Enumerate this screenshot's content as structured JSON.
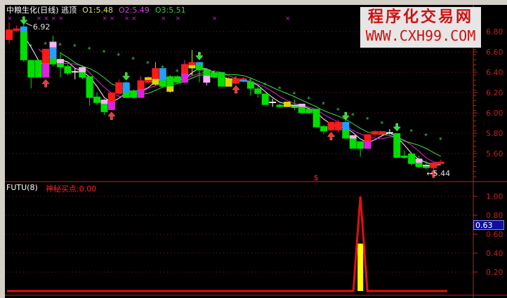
{
  "header": {
    "title": "中粮生化(日线) 逃顶",
    "o1": "O1:5.48",
    "o2": "O2:5.49",
    "o3": "O3:5.51"
  },
  "watermark": {
    "line1": "程序化交易网",
    "line2": "WWW.CXH99.COM"
  },
  "subpanel": {
    "name": "FUTU(8)",
    "series_label": "神秘买点:0.00",
    "cursor_value": "0.63"
  },
  "colors": {
    "red": "#ff1a1a",
    "green": "#00e000",
    "blue": "#22a0ff",
    "magenta": "#e020e0",
    "pink": "#ffb0ff",
    "yellow": "#d8d800",
    "white": "#ffffff",
    "axis": "#c02020",
    "stars": "#40d040",
    "purple_marks": "#c020c0"
  },
  "chart_data": [
    {
      "type": "candlestick",
      "ylim": [
        5.38,
        6.94
      ],
      "yticks": [
        "6.80",
        "6.60",
        "6.40",
        "6.20",
        "6.00",
        "5.80",
        "5.60"
      ],
      "high_label": "6.92",
      "low_label": "5.44",
      "candles": [
        {
          "t": 6.82,
          "b": 6.72,
          "h": 6.89,
          "l": 6.68,
          "c": [
            "red"
          ]
        },
        {
          "t": 6.83,
          "b": 6.81,
          "h": 6.86,
          "l": 6.8,
          "c": [
            "red"
          ]
        },
        {
          "t": 6.85,
          "b": 6.52,
          "h": 6.92,
          "l": 6.5,
          "c": [
            "blue",
            "green",
            "green",
            "green",
            "green",
            "green"
          ]
        },
        {
          "t": 6.52,
          "b": 6.35,
          "h": 6.52,
          "l": 6.24,
          "c": [
            "green"
          ]
        },
        {
          "t": 6.52,
          "b": 6.35,
          "h": 6.52,
          "l": 6.35,
          "c": [
            "green"
          ]
        },
        {
          "t": 6.63,
          "b": 6.35,
          "h": 6.63,
          "l": 6.35,
          "c": [
            "red",
            "magenta"
          ]
        },
        {
          "t": 6.7,
          "b": 6.48,
          "h": 6.76,
          "l": 6.46,
          "c": [
            "pink",
            "blue",
            "blue",
            "green"
          ]
        },
        {
          "t": 6.53,
          "b": 6.45,
          "h": 6.6,
          "l": 6.35,
          "c": [
            "pink",
            "green"
          ]
        },
        {
          "t": 6.46,
          "b": 6.39,
          "h": 6.48,
          "l": 6.37,
          "c": [
            "green"
          ]
        },
        {
          "t": 6.41,
          "b": 6.4,
          "h": 6.44,
          "l": 6.33,
          "c": [
            "white"
          ]
        },
        {
          "t": 6.45,
          "b": 6.35,
          "h": 6.47,
          "l": 6.33,
          "c": [
            "pink",
            "green"
          ]
        },
        {
          "t": 6.36,
          "b": 6.15,
          "h": 6.36,
          "l": 6.07,
          "c": [
            "green"
          ]
        },
        {
          "t": 6.16,
          "b": 6.1,
          "h": 6.2,
          "l": 6.08,
          "c": [
            "green"
          ]
        },
        {
          "t": 6.13,
          "b": 6.01,
          "h": 6.14,
          "l": 5.98,
          "c": [
            "pink",
            "green",
            "green"
          ]
        },
        {
          "t": 6.2,
          "b": 6.03,
          "h": 6.2,
          "l": 6.03,
          "c": [
            "red",
            "magenta"
          ]
        },
        {
          "t": 6.3,
          "b": 6.19,
          "h": 6.33,
          "l": 6.17,
          "c": [
            "red"
          ]
        },
        {
          "t": 6.3,
          "b": 6.15,
          "h": 6.31,
          "l": 6.15,
          "c": [
            "blue",
            "blue",
            "green"
          ]
        },
        {
          "t": 6.22,
          "b": 6.15,
          "h": 6.23,
          "l": 6.14,
          "c": [
            "green"
          ]
        },
        {
          "t": 6.32,
          "b": 6.15,
          "h": 6.36,
          "l": 6.15,
          "c": [
            "red",
            "magenta"
          ]
        },
        {
          "t": 6.35,
          "b": 6.3,
          "h": 6.36,
          "l": 6.29,
          "c": [
            "yellow",
            "red"
          ]
        },
        {
          "t": 6.44,
          "b": 6.28,
          "h": 6.5,
          "l": 6.27,
          "c": [
            "red",
            "red",
            "yellow"
          ]
        },
        {
          "t": 6.44,
          "b": 6.26,
          "h": 6.44,
          "l": 6.26,
          "c": [
            "blue",
            "blue",
            "green"
          ]
        },
        {
          "t": 6.36,
          "b": 6.21,
          "h": 6.37,
          "l": 6.2,
          "c": [
            "green",
            "green",
            "yellow"
          ]
        },
        {
          "t": 6.36,
          "b": 6.3,
          "h": 6.37,
          "l": 6.29,
          "c": [
            "green"
          ]
        },
        {
          "t": 6.48,
          "b": 6.3,
          "h": 6.52,
          "l": 6.29,
          "c": [
            "red",
            "magenta"
          ]
        },
        {
          "t": 6.5,
          "b": 6.44,
          "h": 6.62,
          "l": 6.37,
          "c": [
            "red",
            "yellow"
          ]
        },
        {
          "t": 6.5,
          "b": 6.42,
          "h": 6.5,
          "l": 6.3,
          "c": [
            "blue",
            "green",
            "green"
          ]
        },
        {
          "t": 6.43,
          "b": 6.3,
          "h": 6.44,
          "l": 6.27,
          "c": [
            "green",
            "pink"
          ]
        },
        {
          "t": 6.4,
          "b": 6.35,
          "h": 6.42,
          "l": 6.34,
          "c": [
            "green"
          ]
        },
        {
          "t": 6.4,
          "b": 6.26,
          "h": 6.4,
          "l": 6.26,
          "c": [
            "green"
          ]
        },
        {
          "t": 6.34,
          "b": 6.26,
          "h": 6.35,
          "l": 6.26,
          "c": [
            "yellow"
          ]
        },
        {
          "t": 6.34,
          "b": 6.29,
          "h": 6.35,
          "l": 6.28,
          "c": [
            "red"
          ]
        },
        {
          "t": 6.34,
          "b": 6.31,
          "h": 6.35,
          "l": 6.3,
          "c": [
            "red",
            "blue"
          ]
        },
        {
          "t": 6.31,
          "b": 6.24,
          "h": 6.32,
          "l": 6.17,
          "c": [
            "green"
          ]
        },
        {
          "t": 6.24,
          "b": 6.19,
          "h": 6.26,
          "l": 6.15,
          "c": [
            "green"
          ]
        },
        {
          "t": 6.19,
          "b": 6.08,
          "h": 6.19,
          "l": 6.08,
          "c": [
            "green"
          ]
        },
        {
          "t": 6.11,
          "b": 6.1,
          "h": 6.14,
          "l": 6.06,
          "c": [
            "white"
          ]
        },
        {
          "t": 6.08,
          "b": 6.06,
          "h": 6.09,
          "l": 6.05,
          "c": [
            "green"
          ]
        },
        {
          "t": 6.11,
          "b": 6.06,
          "h": 6.11,
          "l": 6.06,
          "c": [
            "yellow"
          ]
        },
        {
          "t": 6.08,
          "b": 6.05,
          "h": 6.13,
          "l": 6.03,
          "c": [
            "pink",
            "green"
          ]
        },
        {
          "t": 6.09,
          "b": 6.0,
          "h": 6.09,
          "l": 5.99,
          "c": [
            "pink",
            "green",
            "green"
          ]
        },
        {
          "t": 6.04,
          "b": 6.0,
          "h": 6.04,
          "l": 5.99,
          "c": [
            "green"
          ]
        },
        {
          "t": 6.04,
          "b": 5.86,
          "h": 6.04,
          "l": 5.86,
          "c": [
            "green"
          ]
        },
        {
          "t": 5.87,
          "b": 5.82,
          "h": 5.88,
          "l": 5.79,
          "c": [
            "green"
          ]
        },
        {
          "t": 5.91,
          "b": 5.83,
          "h": 5.91,
          "l": 5.83,
          "c": [
            "red"
          ]
        },
        {
          "t": 5.91,
          "b": 5.83,
          "h": 5.93,
          "l": 5.81,
          "c": [
            "red"
          ]
        },
        {
          "t": 5.91,
          "b": 5.75,
          "h": 5.94,
          "l": 5.75,
          "c": [
            "blue",
            "green"
          ]
        },
        {
          "t": 5.78,
          "b": 5.65,
          "h": 5.78,
          "l": 5.65,
          "c": [
            "pink",
            "green",
            "green",
            "green"
          ]
        },
        {
          "t": 5.72,
          "b": 5.65,
          "h": 5.72,
          "l": 5.57,
          "c": [
            "green"
          ]
        },
        {
          "t": 5.79,
          "b": 5.65,
          "h": 5.79,
          "l": 5.65,
          "c": [
            "red",
            "magenta"
          ]
        },
        {
          "t": 5.82,
          "b": 5.79,
          "h": 5.83,
          "l": 5.76,
          "c": [
            "red"
          ]
        },
        {
          "t": 5.82,
          "b": 5.79,
          "h": 5.82,
          "l": 5.79,
          "c": [
            "red"
          ]
        },
        {
          "t": 5.81,
          "b": 5.8,
          "h": 5.84,
          "l": 5.79,
          "c": [
            "white"
          ]
        },
        {
          "t": 5.8,
          "b": 5.56,
          "h": 5.8,
          "l": 5.56,
          "c": [
            "green"
          ]
        },
        {
          "t": 5.58,
          "b": 5.56,
          "h": 5.63,
          "l": 5.55,
          "c": [
            "green"
          ]
        },
        {
          "t": 5.6,
          "b": 5.5,
          "h": 5.6,
          "l": 5.48,
          "c": [
            "green"
          ]
        },
        {
          "t": 5.55,
          "b": 5.47,
          "h": 5.58,
          "l": 5.46,
          "c": [
            "pink",
            "green"
          ]
        },
        {
          "t": 5.49,
          "b": 5.46,
          "h": 5.53,
          "l": 5.45,
          "c": [
            "pink",
            "green"
          ]
        },
        {
          "t": 5.51,
          "b": 5.46,
          "h": 5.52,
          "l": 5.44,
          "c": [
            "red"
          ]
        },
        {
          "t": 5.52,
          "b": 5.5,
          "h": 5.54,
          "l": 5.5,
          "c": [
            "red"
          ]
        }
      ],
      "trend_stars": [
        [
          3,
          6.66
        ],
        [
          5,
          6.68
        ],
        [
          7,
          6.67
        ],
        [
          9,
          6.66
        ],
        [
          11,
          6.63
        ],
        [
          13,
          6.6
        ],
        [
          15,
          6.57
        ],
        [
          17,
          6.53
        ],
        [
          19,
          6.49
        ],
        [
          21,
          6.45
        ],
        [
          23,
          6.41
        ],
        [
          25,
          6.38
        ],
        [
          27,
          6.36
        ],
        [
          29,
          6.35
        ],
        [
          31,
          6.34
        ],
        [
          33,
          6.32
        ],
        [
          35,
          6.28
        ],
        [
          37,
          6.24
        ],
        [
          39,
          6.19
        ],
        [
          41,
          6.14
        ],
        [
          43,
          6.09
        ],
        [
          45,
          6.03
        ],
        [
          47,
          5.98
        ],
        [
          49,
          5.94
        ],
        [
          51,
          5.9
        ],
        [
          53,
          5.86
        ],
        [
          55,
          5.82
        ],
        [
          57,
          5.78
        ],
        [
          59,
          5.74
        ]
      ],
      "top_marks": [
        0,
        4,
        5,
        6,
        7,
        13,
        14,
        16,
        17,
        21,
        23,
        28,
        38
      ],
      "sell_arrows": [
        2,
        16,
        26,
        46,
        53
      ],
      "buy_arrows": [
        5,
        14,
        31,
        44,
        58
      ],
      "dollar_mark": {
        "index": 42,
        "text": "$"
      }
    },
    {
      "type": "line",
      "name": "神秘买点",
      "ylim": [
        0,
        1.1
      ],
      "yticks": [
        "1.00",
        "0.80",
        "0.60",
        "0.40",
        "0.20"
      ],
      "baseline": 0,
      "spike": {
        "index": 48,
        "value": 1.0
      },
      "bar": {
        "index": 48,
        "value": 0.5
      }
    }
  ]
}
